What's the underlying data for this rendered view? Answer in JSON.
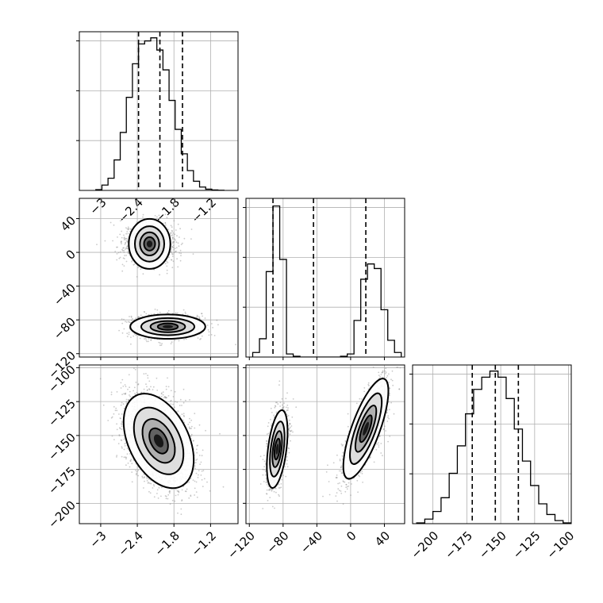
{
  "chart_data": {
    "type": "corner",
    "parameters": [
      {
        "range": [
          -3.35,
          -0.75
        ]
      },
      {
        "range": [
          -124,
          64
        ]
      },
      {
        "range": [
          -215,
          -98
        ]
      }
    ],
    "grid": true,
    "panels": [
      {
        "id": "hist-p0",
        "type": "histogram",
        "row": 0,
        "col": 0,
        "param": 0,
        "xticks": [
          -3.0,
          -2.4,
          -1.8,
          -1.2
        ],
        "ylim": [
          0,
          1.04
        ],
        "bin_edges": [
          -3.08,
          -2.98,
          -2.88,
          -2.78,
          -2.68,
          -2.58,
          -2.48,
          -2.38,
          -2.28,
          -2.18,
          -2.08,
          -1.98,
          -1.88,
          -1.78,
          -1.68,
          -1.58,
          -1.48,
          -1.38,
          -1.28,
          -1.18,
          -1.08,
          -0.98
        ],
        "counts": [
          0.005,
          0.035,
          0.08,
          0.2,
          0.38,
          0.61,
          0.83,
          0.96,
          0.98,
          1.0,
          0.92,
          0.79,
          0.59,
          0.4,
          0.24,
          0.13,
          0.06,
          0.022,
          0.008,
          0.003,
          0.001
        ],
        "quantiles": [
          -2.38,
          -2.03,
          -1.66
        ]
      },
      {
        "id": "hist-p1",
        "type": "histogram",
        "row": 1,
        "col": 1,
        "param": 1,
        "xticks": [],
        "ylim": [
          0,
          1.04
        ],
        "bin_edges": [
          -116,
          -108,
          -100,
          -92,
          -84,
          -76,
          -68,
          -60,
          -52,
          -44,
          -36,
          -28,
          -20,
          -12,
          -4,
          4,
          12,
          20,
          28,
          36,
          44,
          52,
          60
        ],
        "counts": [
          0.03,
          0.12,
          0.56,
          0.99,
          0.64,
          0.02,
          0.005,
          0.0,
          0.0,
          0.0,
          0.0,
          0.0,
          0.0,
          0.005,
          0.02,
          0.24,
          0.51,
          0.61,
          0.58,
          0.31,
          0.11,
          0.03
        ],
        "quantiles": [
          -92,
          -44,
          18
        ]
      },
      {
        "id": "hist-p2",
        "type": "histogram",
        "row": 2,
        "col": 2,
        "param": 2,
        "xticks": [
          -200,
          -175,
          -150,
          -125,
          -100
        ],
        "ylim": [
          0,
          1.04
        ],
        "bin_edges": [
          -212,
          -206,
          -200,
          -194,
          -188,
          -182,
          -176,
          -170,
          -164,
          -158,
          -152,
          -146,
          -140,
          -134,
          -128,
          -122,
          -116,
          -110,
          -104,
          -98
        ],
        "counts": [
          0.005,
          0.03,
          0.08,
          0.17,
          0.33,
          0.51,
          0.72,
          0.88,
          0.96,
          1.0,
          0.96,
          0.82,
          0.62,
          0.41,
          0.25,
          0.13,
          0.06,
          0.02,
          0.005
        ],
        "quantiles": [
          -171,
          -154,
          -137
        ]
      },
      {
        "id": "scatter-p0-p1",
        "type": "density2d",
        "row": 1,
        "col": 0,
        "xparam": 0,
        "yparam": 1,
        "xticks": [],
        "yticks": [
          -120,
          -80,
          -40,
          0,
          40
        ],
        "clusters": [
          {
            "mean": [
              -2.2,
              10
            ],
            "sd": [
              0.2,
              12
            ],
            "rho": 0.0,
            "weight": 0.5
          },
          {
            "mean": [
              -1.9,
              -88
            ],
            "sd": [
              0.3,
              7
            ],
            "rho": 0.0,
            "weight": 0.5
          }
        ],
        "density_levels": [
          0.12,
          0.4,
          0.72,
          0.9
        ]
      },
      {
        "id": "scatter-p0-p2",
        "type": "density2d",
        "row": 2,
        "col": 0,
        "xparam": 0,
        "yparam": 2,
        "xticks": [
          -3.0,
          -2.4,
          -1.8,
          -1.2
        ],
        "yticks": [
          -200,
          -175,
          -150,
          -125,
          -100
        ],
        "clusters": [
          {
            "mean": [
              -2.05,
              -154
            ],
            "sd": [
              0.28,
              17
            ],
            "rho": -0.4,
            "weight": 1.0
          }
        ],
        "density_levels": [
          0.12,
          0.4,
          0.72,
          0.9
        ]
      },
      {
        "id": "scatter-p1-p2",
        "type": "density2d",
        "row": 2,
        "col": 1,
        "xparam": 1,
        "yparam": 2,
        "xticks": [
          -120,
          -80,
          -40,
          0,
          40
        ],
        "yticks": [],
        "clusters": [
          {
            "mean": [
              -87,
              -160
            ],
            "sd": [
              6,
              14
            ],
            "rho": 0.45,
            "weight": 0.5
          },
          {
            "mean": [
              18,
              -145
            ],
            "sd": [
              13,
              18
            ],
            "rho": 0.75,
            "weight": 0.5
          }
        ],
        "density_levels": [
          0.12,
          0.4,
          0.72,
          0.9
        ]
      }
    ]
  }
}
